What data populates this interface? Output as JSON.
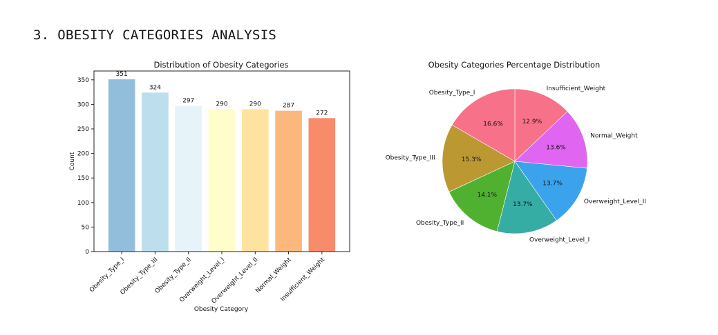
{
  "heading": "3. OBESITY CATEGORIES ANALYSIS",
  "chart_data": [
    {
      "type": "bar",
      "title": "Distribution of Obesity Categories",
      "xlabel": "Obesity Category",
      "ylabel": "Count",
      "categories": [
        "Obesity_Type_I",
        "Obesity_Type_III",
        "Obesity_Type_II",
        "Overweight_Level_I",
        "Overweight_Level_II",
        "Normal_Weight",
        "Insufficient_Weight"
      ],
      "values": [
        351,
        324,
        297,
        290,
        290,
        287,
        272
      ],
      "colors": [
        "#92bedb",
        "#bcdeed",
        "#e6f3f9",
        "#fffdc9",
        "#fee3a0",
        "#fcb87c",
        "#f88b6a"
      ],
      "ylim": [
        0,
        368
      ],
      "yticks": [
        0,
        50,
        100,
        150,
        200,
        250,
        300,
        350
      ],
      "grid": false,
      "legend": "none"
    },
    {
      "type": "pie",
      "title": "Obesity Categories Percentage Distribution",
      "labels": [
        "Insufficient_Weight",
        "Normal_Weight",
        "Overweight_Level_II",
        "Overweight_Level_I",
        "Obesity_Type_II",
        "Obesity_Type_III",
        "Obesity_Type_I"
      ],
      "values": [
        12.9,
        13.6,
        13.7,
        13.7,
        14.1,
        15.3,
        16.6
      ],
      "pct_labels": [
        "12.9%",
        "13.6%",
        "13.7%",
        "13.7%",
        "14.1%",
        "15.3%",
        "16.6%"
      ],
      "colors": [
        "#f77189",
        "#e066f2",
        "#3ba3ec",
        "#36ada4",
        "#50b131",
        "#bb9832",
        "#f77189"
      ],
      "colors_fixed": [
        "#f77189",
        "#e066f2",
        "#3ba3ec",
        "#36ada4",
        "#50b131",
        "#bb9832",
        "#f77189"
      ],
      "start": "12 o'clock, clockwise",
      "legend": "none"
    }
  ]
}
